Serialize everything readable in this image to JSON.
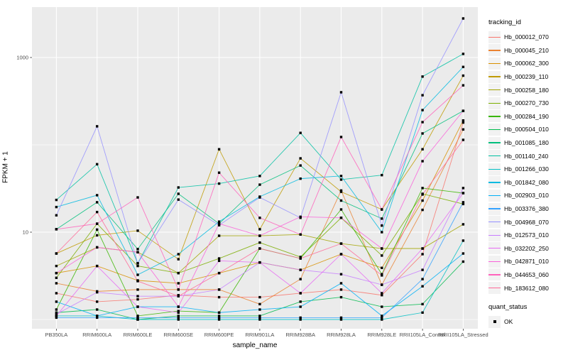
{
  "figure": {
    "panel_bg": "#EBEBEB",
    "grid_color": "#FFFFFF",
    "axis_text_color": "#4D4D4D",
    "tick_color": "#333333",
    "point_color": "#000000",
    "legend_key_bg": "#F2F2F2"
  },
  "chart_data": {
    "type": "line",
    "title": "",
    "xlabel": "sample_name",
    "ylabel": "FPKM + 1",
    "y_scale": "log10",
    "y_ticks": [
      10,
      1000
    ],
    "y_minor_ticks": [
      1,
      100
    ],
    "ylim": [
      1,
      3500
    ],
    "grid": "on",
    "legend_position": "right",
    "categories": [
      "PB350LA",
      "RRIM600LA",
      "RRIM600LE",
      "RRIM600SE",
      "RRIM600PE",
      "RRIM901LA",
      "RRIM928BA",
      "RRIM928LA",
      "RRIM928LE",
      "RRII105LA_Control",
      "RRII105LA_Stressed"
    ],
    "series": [
      {
        "name": "Hb_000012_070",
        "color": "#F8766D",
        "values": [
          2.0,
          1.6,
          1.7,
          1.9,
          1.8,
          1.8,
          2.0,
          2.2,
          1.9,
          5.6,
          180
        ]
      },
      {
        "name": "Hb_000045_210",
        "color": "#EA8331",
        "values": [
          2.6,
          2.1,
          2.2,
          2.2,
          2.2,
          1.5,
          2.9,
          30,
          2.5,
          18,
          150
        ]
      },
      {
        "name": "Hb_000062_300",
        "color": "#D89000",
        "values": [
          3.4,
          4.1,
          2.8,
          2.6,
          3.4,
          4.5,
          3.7,
          5.6,
          3.9,
          23,
          190
        ]
      },
      {
        "name": "Hb_000239_110",
        "color": "#C09B00",
        "values": [
          5.7,
          9.2,
          10.4,
          4.9,
          89,
          10.8,
          70,
          29,
          18.2,
          89,
          620
        ]
      },
      {
        "name": "Hb_000258_180",
        "color": "#A3A500",
        "values": [
          4.1,
          6.7,
          5.9,
          3.4,
          9.1,
          9.1,
          9.4,
          7.4,
          6.5,
          6.5,
          12.3
        ]
      },
      {
        "name": "Hb_000270_730",
        "color": "#7CAE00",
        "values": [
          3.0,
          12.5,
          4.1,
          3.4,
          5.0,
          7.6,
          5.2,
          14.6,
          5.4,
          27.5,
          21
        ]
      },
      {
        "name": "Hb_000284_190",
        "color": "#39B600",
        "values": [
          1.3,
          10.7,
          1.1,
          1.25,
          1.2,
          6.5,
          5.0,
          18.2,
          3.3,
          32,
          28
        ]
      },
      {
        "name": "Hb_000504_010",
        "color": "#00BB4E",
        "values": [
          1.2,
          1.3,
          1.0,
          1.1,
          1.1,
          1.1,
          1.6,
          1.8,
          1.4,
          1.5,
          4.6
        ]
      },
      {
        "name": "Hb_001085_180",
        "color": "#00BF7D",
        "values": [
          10.8,
          22,
          6.4,
          27.5,
          12.5,
          35,
          58,
          23,
          14.3,
          135,
          245
        ]
      },
      {
        "name": "Hb_001140_240",
        "color": "#00C1A3",
        "values": [
          23.4,
          60,
          4.4,
          32.5,
          36,
          44,
          137,
          40,
          45,
          605,
          1100
        ]
      },
      {
        "name": "Hb_001266_030",
        "color": "#00BFC4",
        "values": [
          1.1,
          1.1,
          1.0,
          1.0,
          1.0,
          1.0,
          1.0,
          1.0,
          1.0,
          1.2,
          8.0
        ]
      },
      {
        "name": "Hb_001842_080",
        "color": "#00BAE0",
        "values": [
          19.4,
          26.5,
          3.25,
          5.6,
          13.2,
          25.5,
          41,
          44,
          10,
          250,
          780
        ]
      },
      {
        "name": "Hb_002903_010",
        "color": "#00B0F6",
        "values": [
          1.6,
          1.1,
          1.4,
          1.4,
          1.2,
          1.3,
          1.4,
          2.6,
          1.1,
          2.4,
          5.7
        ]
      },
      {
        "name": "Hb_003376_380",
        "color": "#35A2FF",
        "values": [
          1.05,
          1.05,
          1.05,
          1.05,
          1.05,
          1.05,
          1.05,
          1.05,
          1.05,
          2.9,
          22
        ]
      },
      {
        "name": "Hb_004968_070",
        "color": "#9590FF",
        "values": [
          15.6,
          163,
          4.4,
          23.6,
          12.0,
          25.0,
          14.6,
          400,
          11.9,
          370,
          2800
        ]
      },
      {
        "name": "Hb_012573_010",
        "color": "#C77CFF",
        "values": [
          1.15,
          2.05,
          1.85,
          1.85,
          2.2,
          4.5,
          3.7,
          3.3,
          2.5,
          3.7,
          32
        ]
      },
      {
        "name": "Hb_032202_250",
        "color": "#E76BF3",
        "values": [
          1.1,
          4.1,
          1.4,
          1.2,
          4.7,
          4.5,
          2.0,
          5.6,
          2.0,
          6.5,
          28
        ]
      },
      {
        "name": "Hb_042871_010",
        "color": "#FA62DB",
        "values": [
          3.4,
          6.7,
          5.9,
          1.4,
          12.5,
          9.1,
          15,
          14.6,
          6.5,
          65,
          245
        ]
      },
      {
        "name": "Hb_044653_060",
        "color": "#FF62BC",
        "values": [
          10.8,
          12.5,
          25,
          2.2,
          48,
          14.6,
          9.4,
          123,
          18.2,
          182,
          480
        ]
      },
      {
        "name": "Hb_183612_080",
        "color": "#FF6A98",
        "values": [
          5.7,
          17,
          2.75,
          1.85,
          3.4,
          6.5,
          5.0,
          7.4,
          3.2,
          27,
          114
        ]
      }
    ],
    "legend": {
      "title": "tracking_id",
      "quant_title": "quant_status",
      "quant_items": [
        {
          "label": "OK"
        }
      ]
    }
  }
}
